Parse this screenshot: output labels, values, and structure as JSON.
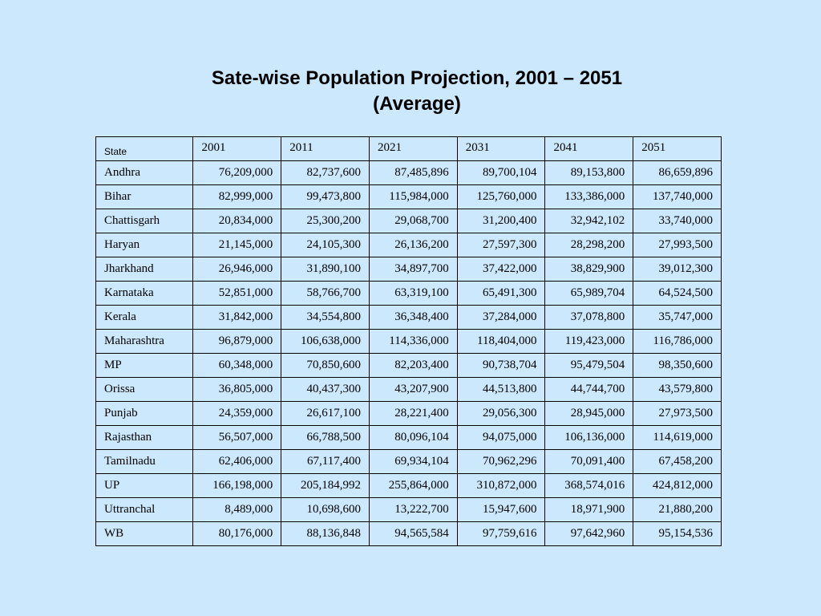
{
  "title": {
    "line1": "Sate-wise Population Projection, 2001 – 2051",
    "line2": "(Average)"
  },
  "table": {
    "headers": [
      "State",
      "2001",
      "2011",
      "2021",
      "2031",
      "2041",
      "2051"
    ],
    "rows": [
      [
        "Andhra",
        "76,209,000",
        "82,737,600",
        "87,485,896",
        "89,700,104",
        "89,153,800",
        "86,659,896"
      ],
      [
        "Bihar",
        "82,999,000",
        "99,473,800",
        "115,984,000",
        "125,760,000",
        "133,386,000",
        "137,740,000"
      ],
      [
        "Chattisgarh",
        "20,834,000",
        "25,300,200",
        "29,068,700",
        "31,200,400",
        "32,942,102",
        "33,740,000"
      ],
      [
        "Haryan",
        "21,145,000",
        "24,105,300",
        "26,136,200",
        "27,597,300",
        "28,298,200",
        "27,993,500"
      ],
      [
        "Jharkhand",
        "26,946,000",
        "31,890,100",
        "34,897,700",
        "37,422,000",
        "38,829,900",
        "39,012,300"
      ],
      [
        "Karnataka",
        "52,851,000",
        "58,766,700",
        "63,319,100",
        "65,491,300",
        "65,989,704",
        "64,524,500"
      ],
      [
        "Kerala",
        "31,842,000",
        "34,554,800",
        "36,348,400",
        "37,284,000",
        "37,078,800",
        "35,747,000"
      ],
      [
        "Maharashtra",
        "96,879,000",
        "106,638,000",
        "114,336,000",
        "118,404,000",
        "119,423,000",
        "116,786,000"
      ],
      [
        "MP",
        "60,348,000",
        "70,850,600",
        "82,203,400",
        "90,738,704",
        "95,479,504",
        "98,350,600"
      ],
      [
        "Orissa",
        "36,805,000",
        "40,437,300",
        "43,207,900",
        "44,513,800",
        "44,744,700",
        "43,579,800"
      ],
      [
        "Punjab",
        "24,359,000",
        "26,617,100",
        "28,221,400",
        "29,056,300",
        "28,945,000",
        "27,973,500"
      ],
      [
        "Rajasthan",
        "56,507,000",
        "66,788,500",
        "80,096,104",
        "94,075,000",
        "106,136,000",
        "114,619,000"
      ],
      [
        "Tamilnadu",
        "62,406,000",
        "67,117,400",
        "69,934,104",
        "70,962,296",
        "70,091,400",
        "67,458,200"
      ],
      [
        "UP",
        "166,198,000",
        "205,184,992",
        "255,864,000",
        "310,872,000",
        "368,574,016",
        "424,812,000"
      ],
      [
        "Uttranchal",
        "8,489,000",
        "10,698,600",
        "13,222,700",
        "15,947,600",
        "18,971,900",
        "21,880,200"
      ],
      [
        "WB",
        "80,176,000",
        "88,136,848",
        "94,565,584",
        "97,759,616",
        "97,642,960",
        "95,154,536"
      ]
    ]
  }
}
